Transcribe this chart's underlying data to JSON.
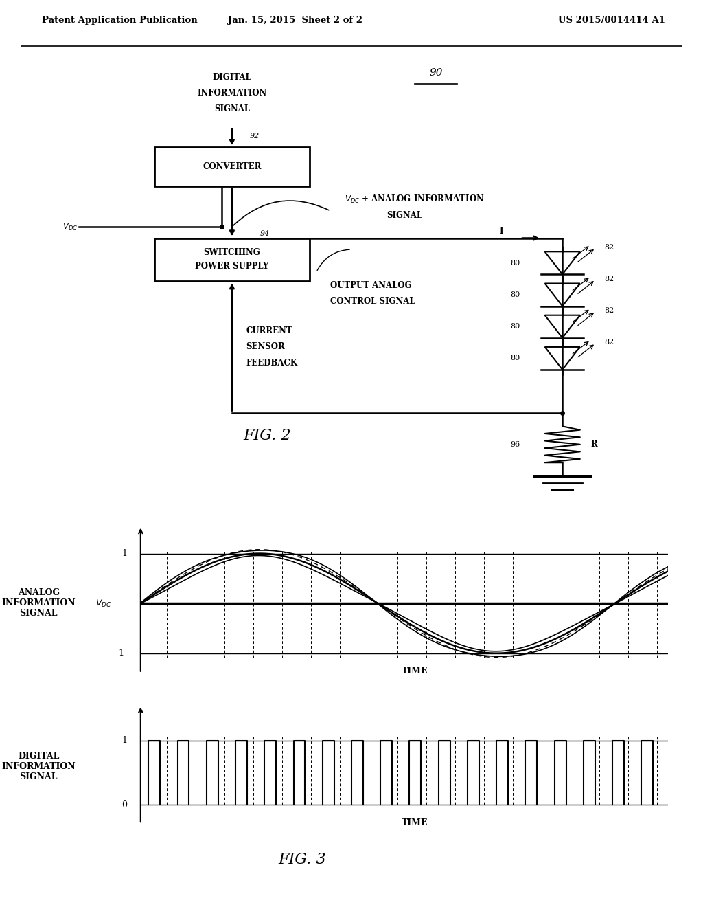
{
  "bg_color": "#ffffff",
  "header_left": "Patent Application Publication",
  "header_center": "Jan. 15, 2015  Sheet 2 of 2",
  "header_right": "US 2015/0014414 A1",
  "fig2_label": "FIG. 2",
  "fig3_label": "FIG. 3",
  "label_90": "90",
  "label_92": "92",
  "label_94": "94",
  "label_96": "96",
  "label_80": "80",
  "label_82": "82",
  "label_R": "R",
  "analog_sine_period": 9.0,
  "num_dashed_lines": 18,
  "num_digital_pulses": 18
}
